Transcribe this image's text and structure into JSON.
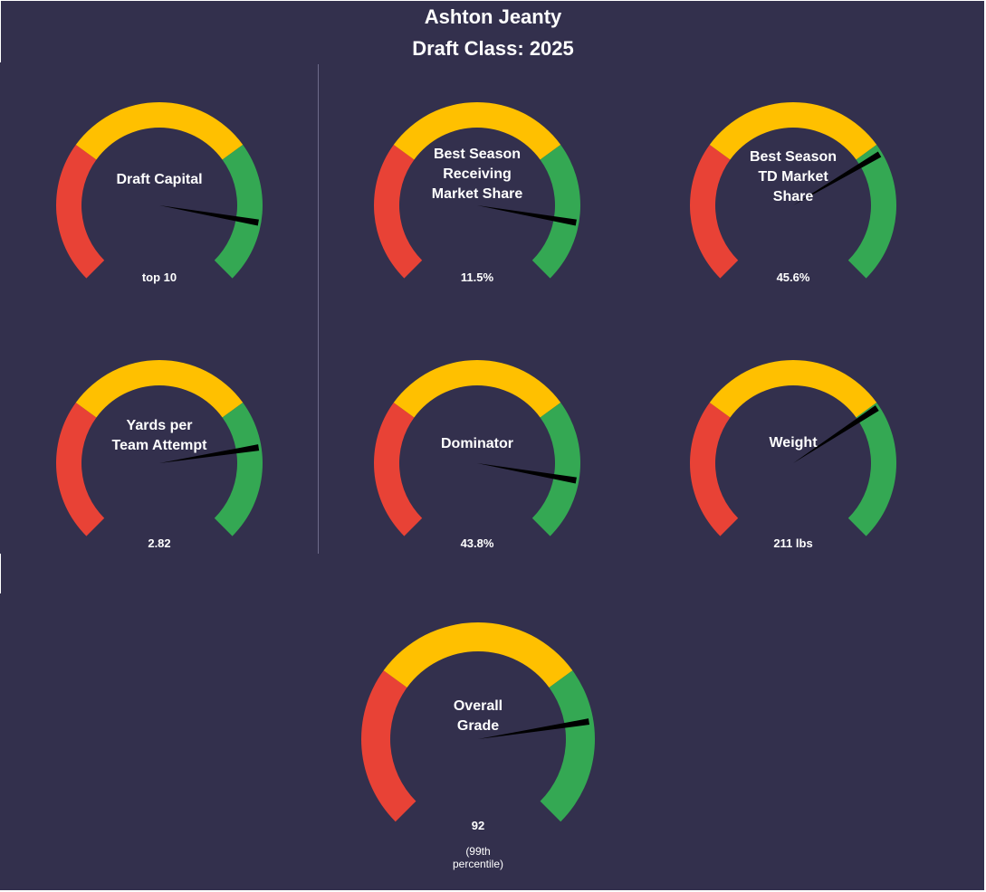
{
  "title": "Ashton Jeanty",
  "subtitle": "Draft Class: 2025",
  "colors": {
    "background": "#33304d",
    "low": "#e84236",
    "mid": "#ffc000",
    "high": "#34a853",
    "needle": "#000000",
    "text": "#ffffff"
  },
  "chart_data": [
    {
      "type": "gauge",
      "label_lines": [
        "Draft Capital"
      ],
      "value_text": "top 10",
      "needle_fraction": 0.87
    },
    {
      "type": "gauge",
      "label_lines": [
        "Best Season",
        "Receiving",
        "Market Share"
      ],
      "value_text": "11.5%",
      "needle_fraction": 0.87
    },
    {
      "type": "gauge",
      "label_lines": [
        "Best Season",
        "TD Market",
        "Share"
      ],
      "value_text": "45.6%",
      "needle_fraction": 0.72
    },
    {
      "type": "gauge",
      "label_lines": [
        "Yards per",
        "Team Attempt"
      ],
      "value_text": "2.82",
      "needle_fraction": 0.8
    },
    {
      "type": "gauge",
      "label_lines": [
        "Dominator"
      ],
      "value_text": "43.8%",
      "needle_fraction": 0.87
    },
    {
      "type": "gauge",
      "label_lines": [
        "Weight"
      ],
      "value_text": "211 lbs",
      "needle_fraction": 0.71
    },
    {
      "type": "gauge",
      "label_lines": [
        "Overall",
        "Grade"
      ],
      "value_text": "92",
      "note_lines": [
        "(99th",
        "percentile)"
      ],
      "needle_fraction": 0.8
    }
  ]
}
